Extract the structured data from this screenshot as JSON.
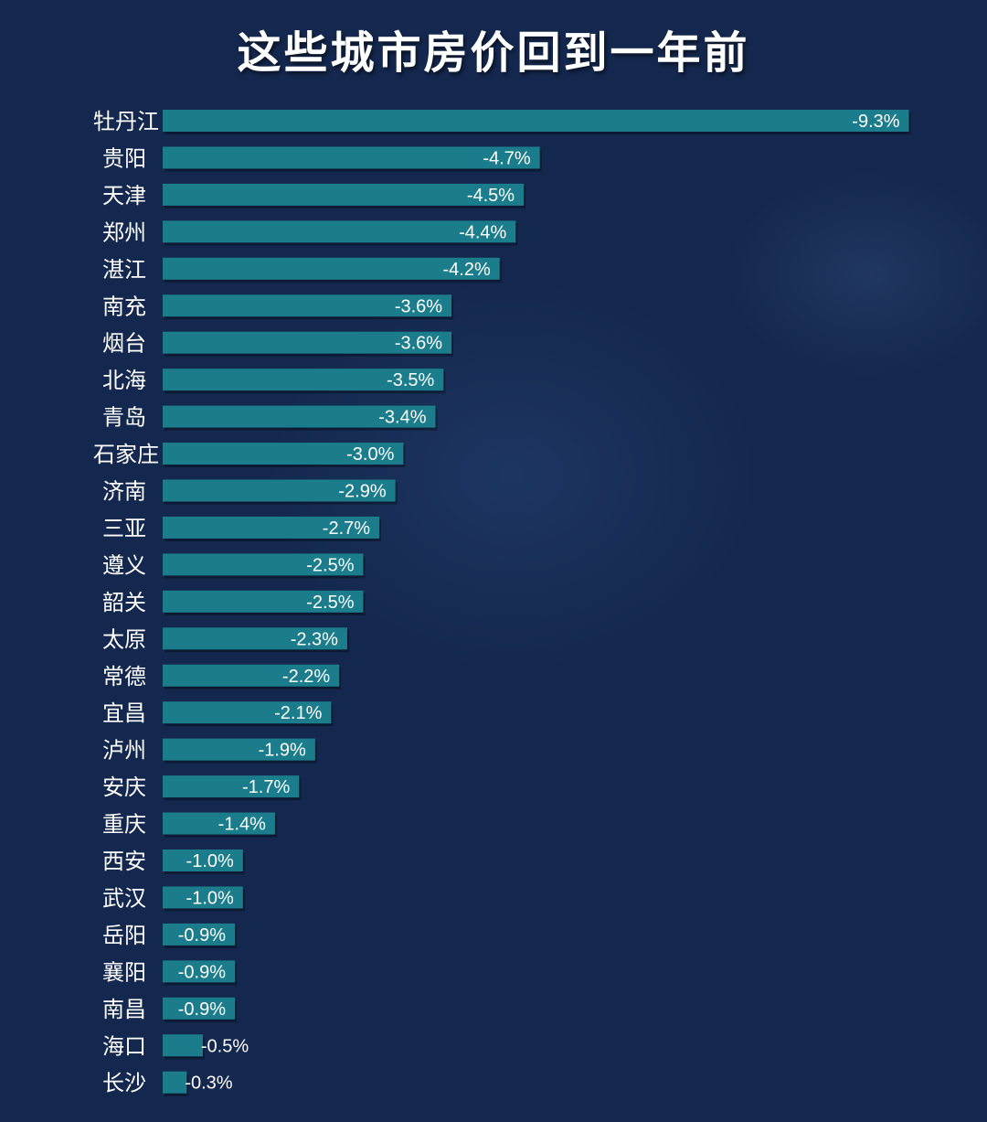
{
  "chart_data": {
    "type": "bar",
    "orientation": "horizontal",
    "title": "这些城市房价回到一年前",
    "categories": [
      "牡丹江",
      "贵阳",
      "天津",
      "郑州",
      "湛江",
      "南充",
      "烟台",
      "北海",
      "青岛",
      "石家庄",
      "济南",
      "三亚",
      "遵义",
      "韶关",
      "太原",
      "常德",
      "宜昌",
      "泸州",
      "安庆",
      "重庆",
      "西安",
      "武汉",
      "岳阳",
      "襄阳",
      "南昌",
      "海口",
      "长沙"
    ],
    "values": [
      -9.3,
      -4.7,
      -4.5,
      -4.4,
      -4.2,
      -3.6,
      -3.6,
      -3.5,
      -3.4,
      -3.0,
      -2.9,
      -2.7,
      -2.5,
      -2.5,
      -2.3,
      -2.2,
      -2.1,
      -1.9,
      -1.7,
      -1.4,
      -1.0,
      -1.0,
      -0.9,
      -0.9,
      -0.9,
      -0.5,
      -0.3
    ],
    "value_labels": [
      "-9.3%",
      "-4.7%",
      "-4.5%",
      "-4.4%",
      "-4.2%",
      "-3.6%",
      "-3.6%",
      "-3.5%",
      "-3.4%",
      "-3.0%",
      "-2.9%",
      "-2.7%",
      "-2.5%",
      "-2.5%",
      "-2.3%",
      "-2.2%",
      "-2.1%",
      "-1.9%",
      "-1.7%",
      "-1.4%",
      "-1.0%",
      "-1.0%",
      "-0.9%",
      "-0.9%",
      "-0.9%",
      "-0.5%",
      "-0.3%"
    ],
    "xlabel": "",
    "ylabel": "",
    "grid": false,
    "legend": "none",
    "colors": {
      "background": "#14284f",
      "bar": "#1b7c8c",
      "text": "#ffffff"
    }
  }
}
